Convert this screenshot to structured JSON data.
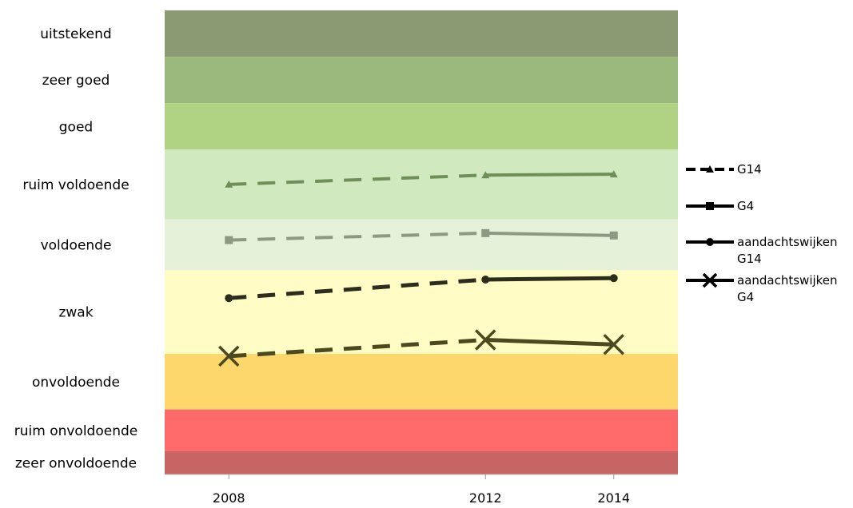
{
  "chart_data": {
    "type": "line",
    "title": "",
    "xlabel": "",
    "ylabel": "",
    "x": [
      2008,
      2012,
      2014
    ],
    "xlim": [
      2007,
      2015
    ],
    "ylim": [
      0,
      10
    ],
    "bands": [
      {
        "label": "uitstekend",
        "from": 9,
        "to": 10,
        "color": "#8a9a72"
      },
      {
        "label": "zeer goed",
        "from": 8,
        "to": 9,
        "color": "#9bb87c"
      },
      {
        "label": "goed",
        "from": 7,
        "to": 8,
        "color": "#afd383"
      },
      {
        "label": "ruim voldoende",
        "from": 5.5,
        "to": 7,
        "color": "#d0e9bf"
      },
      {
        "label": "voldoende",
        "from": 4.4,
        "to": 5.5,
        "color": "#e6f1d9"
      },
      {
        "label": "zwak",
        "from": 2.6,
        "to": 4.4,
        "color": "#fffcc5"
      },
      {
        "label": "onvoldoende",
        "from": 1.4,
        "to": 2.6,
        "color": "#fdd66c"
      },
      {
        "label": "ruim onvoldoende",
        "from": 0.5,
        "to": 1.4,
        "color": "#fe6969"
      },
      {
        "label": "zeer onvoldoende",
        "from": 0,
        "to": 0.5,
        "color": "#c76565"
      }
    ],
    "series": [
      {
        "name": "G14",
        "marker": "triangle",
        "color": "#6f8f5a",
        "values": [
          6.25,
          6.45,
          6.47
        ]
      },
      {
        "name": "G4",
        "marker": "square",
        "color": "#8c9a84",
        "values": [
          5.05,
          5.2,
          5.15
        ]
      },
      {
        "name": "aandachtswijken G14",
        "marker": "circle",
        "color": "#2d2d1e",
        "values": [
          3.8,
          4.2,
          4.23
        ]
      },
      {
        "name": "aandachtswijken G4",
        "marker": "x",
        "color": "#4a4a1e",
        "values": [
          2.55,
          2.9,
          2.8
        ]
      }
    ],
    "line_style": "dashed from 2008 to 2012, solid from 2012 to 2014",
    "legend": {
      "position": "right"
    }
  }
}
